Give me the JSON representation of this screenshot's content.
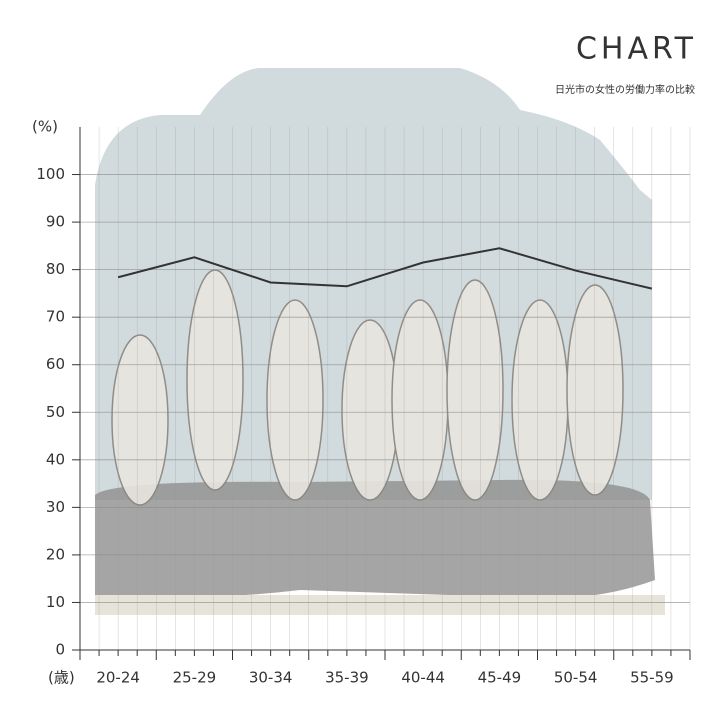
{
  "chart_data": {
    "type": "line",
    "title": "CHART",
    "subtitle": "日光市の女性の労働力率の比較",
    "y_label": "(%)",
    "x_label": "(歳)",
    "categories": [
      "20-24",
      "25-29",
      "30-34",
      "35-39",
      "40-44",
      "45-49",
      "50-54",
      "55-59"
    ],
    "series": [
      {
        "color": "#333333",
        "values": [
          78.4,
          82.6,
          77.3,
          76.5,
          81.5,
          84.5,
          79.8,
          76.0
        ]
      }
    ],
    "ylim": [
      0,
      110
    ],
    "yticks": [
      0,
      10,
      20,
      30,
      40,
      50,
      60,
      70,
      80,
      90,
      100
    ],
    "grid": true
  }
}
